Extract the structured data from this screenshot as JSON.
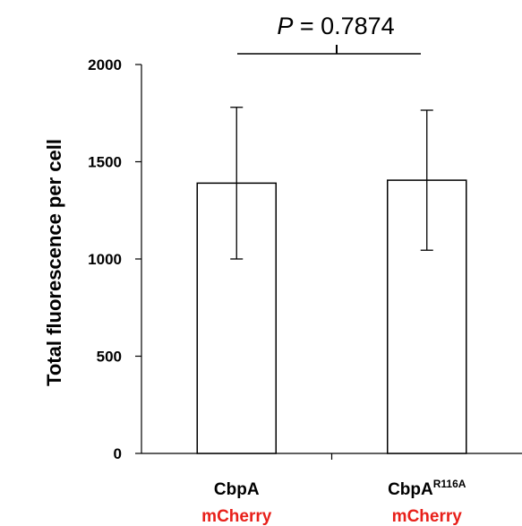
{
  "chart_data": {
    "type": "bar",
    "ylabel": "Total fluorescence per cell",
    "ylim": [
      0,
      2000
    ],
    "yticks": [
      0,
      500,
      1000,
      1500,
      2000
    ],
    "categories": [
      {
        "name": "CbpA",
        "superscript": "",
        "sub": "mCherry"
      },
      {
        "name": "CbpA",
        "superscript": "R116A",
        "sub": "mCherry"
      }
    ],
    "values": [
      1390,
      1405
    ],
    "errors": [
      390,
      360
    ],
    "annotation": {
      "italic": "P",
      "text": " = 0.7874"
    },
    "colors": {
      "bar_fill": "#ffffff",
      "bar_stroke": "#000000",
      "sub_label": "#e8201a",
      "axis": "#000000"
    },
    "grid": false
  }
}
